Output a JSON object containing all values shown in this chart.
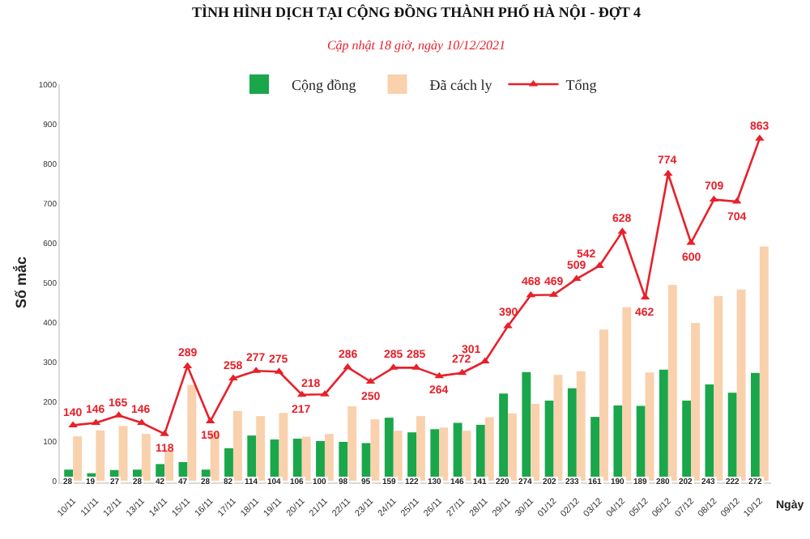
{
  "chart_data": {
    "type": "bar",
    "title": "TÌNH HÌNH DỊCH TẠI CỘNG ĐỒNG THÀNH PHỐ HÀ NỘI - ĐỢT 4",
    "subtitle": "Cập nhật 18 giờ, ngày 10/12/2021",
    "xlabel": "Ngày",
    "ylabel": "Số mắc",
    "categories": [
      "10/11",
      "11/11",
      "12/11",
      "13/11",
      "14/11",
      "15/11",
      "16/11",
      "17/11",
      "18/11",
      "19/11",
      "20/11",
      "21/11",
      "22/11",
      "23/11",
      "24/11",
      "25/11",
      "26/11",
      "27/11",
      "28/11",
      "29/11",
      "30/11",
      "01/12",
      "02/12",
      "03/12",
      "04/12",
      "05/12",
      "06/12",
      "07/12",
      "08/12",
      "09/12",
      "10/12"
    ],
    "series": [
      {
        "name": "Cộng đồng",
        "color": "#1aa64b",
        "data_labels": true,
        "values": [
          28,
          19,
          27,
          28,
          42,
          47,
          28,
          82,
          114,
          104,
          106,
          100,
          98,
          95,
          159,
          122,
          130,
          146,
          141,
          220,
          274,
          202,
          233,
          161,
          190,
          189,
          280,
          202,
          243,
          222,
          272
        ]
      },
      {
        "name": "Đã cách ly",
        "color": "#f9d1ad",
        "values": [
          112,
          127,
          138,
          118,
          76,
          242,
          122,
          176,
          163,
          171,
          111,
          118,
          188,
          155,
          126,
          163,
          134,
          126,
          160,
          170,
          194,
          267,
          276,
          381,
          438,
          273,
          494,
          398,
          466,
          482,
          591
        ]
      },
      {
        "name": "Tổng",
        "type": "line",
        "color": "#e8202a",
        "marker": "triangle",
        "data_labels": true,
        "values": [
          140,
          146,
          165,
          146,
          118,
          289,
          150,
          258,
          277,
          275,
          217,
          218,
          286,
          250,
          285,
          285,
          264,
          272,
          301,
          390,
          468,
          469,
          509,
          542,
          628,
          462,
          774,
          600,
          709,
          704,
          863
        ]
      }
    ],
    "ylim": [
      0,
      1000
    ],
    "yticks": [
      0,
      100,
      200,
      300,
      400,
      500,
      600,
      700,
      800,
      900,
      1000
    ],
    "grid": false,
    "legend": "top"
  }
}
